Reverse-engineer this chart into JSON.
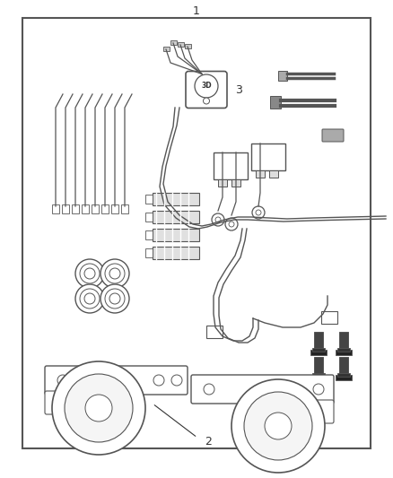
{
  "title": "1",
  "label_2": "2",
  "label_3": "3",
  "bg_color": "#ffffff",
  "border_color": "#555555",
  "line_color": "#555555",
  "text_color": "#333333",
  "fig_width": 4.38,
  "fig_height": 5.33,
  "dpi": 100
}
